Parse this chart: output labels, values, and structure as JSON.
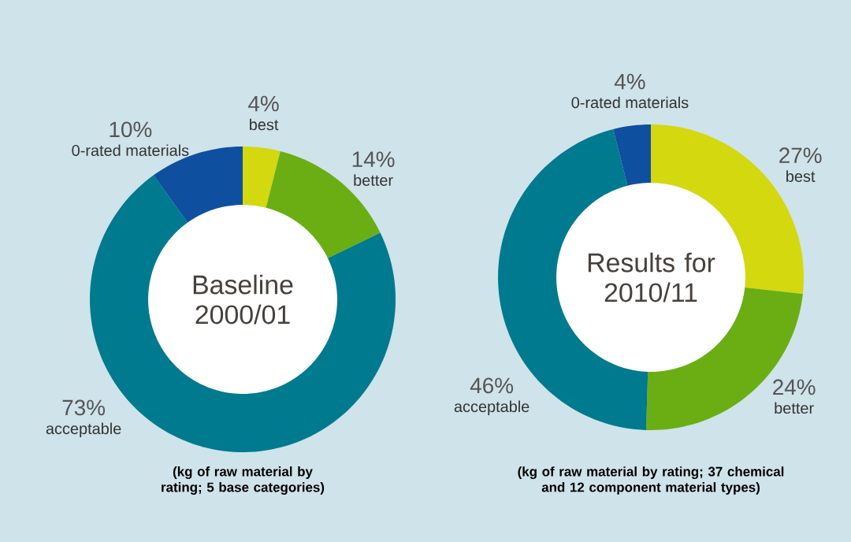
{
  "chart_data": [
    {
      "type": "donut",
      "title": "Baseline 2000/01",
      "categories": [
        "best",
        "better",
        "acceptable",
        "0-rated materials"
      ],
      "values": [
        4,
        14,
        73,
        10
      ],
      "colors": [
        "#d3d80f",
        "#6aae14",
        "#007a8e",
        "#0f4fa0"
      ],
      "value_labels": [
        "4%",
        "14%",
        "73%",
        "10%"
      ],
      "annotations": [
        "(kg of raw material by rating; 5 base categories)"
      ]
    },
    {
      "type": "donut",
      "title": "Results for 2010/11",
      "categories": [
        "best",
        "better",
        "acceptable",
        "0-rated materials"
      ],
      "values": [
        27,
        24,
        46,
        4
      ],
      "colors": [
        "#d3d80f",
        "#6aae14",
        "#007a8e",
        "#0f4fa0"
      ],
      "value_labels": [
        "27%",
        "24%",
        "46%",
        "4%"
      ],
      "annotations": [
        "(kg of raw material by rating; 37 chemical and 12 component material types)"
      ]
    }
  ]
}
